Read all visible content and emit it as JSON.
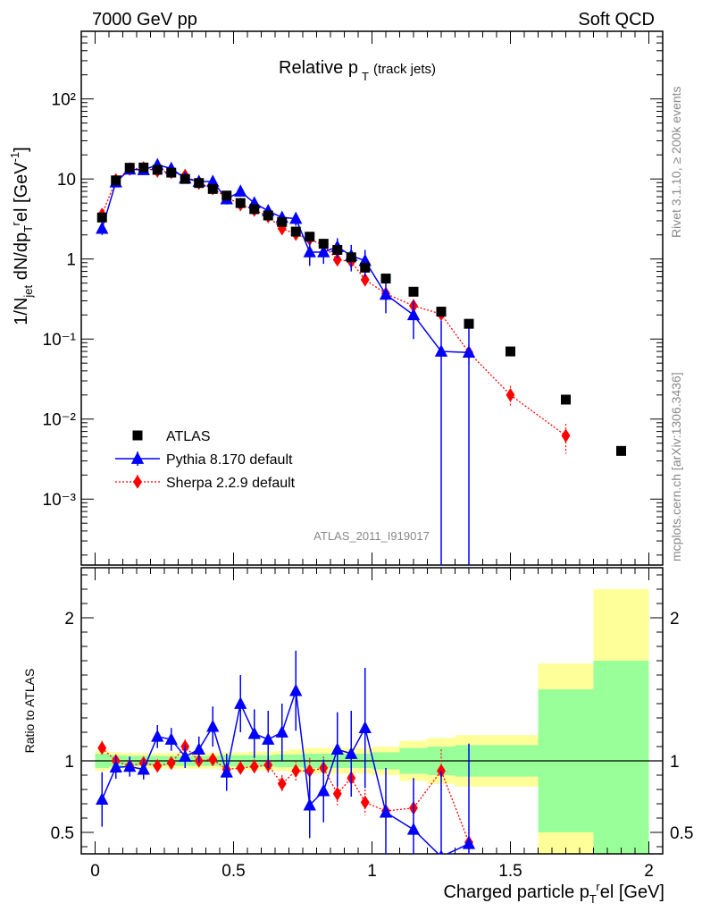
{
  "header": {
    "left": "7000 GeV pp",
    "right": "Soft QCD"
  },
  "side_labels": {
    "rivet": "Rivet 3.1.10, ≥ 200k events",
    "mcplots": "mcplots.cern.ch [arXiv:1306.3436]"
  },
  "colors": {
    "atlas": "#000000",
    "pythia": "#0000ff",
    "sherpa": "#ff0000",
    "band_inner": "#99ff99",
    "band_outer": "#ffff99"
  },
  "chart_data": [
    {
      "type": "scatter",
      "title": "Relative p_T (track jets)",
      "title_main": "Relative p",
      "title_sub": "T",
      "title_suffix": "(track jets)",
      "ylabel": "1/N_jet dN/dp_T^rel [GeV^-1]",
      "yscale": "log",
      "xlim": [
        -0.05,
        2.05
      ],
      "ylim": [
        0.00015,
        700
      ],
      "y_tick_labels": [
        "10⁻³",
        "10⁻²",
        "10⁻¹",
        "1",
        "10",
        "10²"
      ],
      "x": [
        0.025,
        0.075,
        0.125,
        0.175,
        0.225,
        0.275,
        0.325,
        0.375,
        0.425,
        0.475,
        0.525,
        0.575,
        0.625,
        0.675,
        0.725,
        0.775,
        0.825,
        0.875,
        0.925,
        0.975,
        1.05,
        1.15,
        1.25,
        1.35,
        1.5,
        1.7,
        1.9
      ],
      "series": [
        {
          "name": "ATLAS",
          "marker": "square",
          "values": [
            3.3,
            9.6,
            13.8,
            13.9,
            13.0,
            12.0,
            10.0,
            8.9,
            7.5,
            6.2,
            5.0,
            4.2,
            3.5,
            2.9,
            2.2,
            1.9,
            1.55,
            1.3,
            1.05,
            0.78,
            0.57,
            0.39,
            0.22,
            0.155,
            0.07,
            0.0175,
            0.004
          ]
        },
        {
          "name": "Pythia 8.170 default",
          "marker": "triangle",
          "line": "solid",
          "values": [
            2.4,
            9.1,
            13.2,
            13.0,
            15.0,
            13.5,
            10.2,
            9.3,
            9.3,
            5.6,
            7.0,
            5.0,
            4.0,
            3.3,
            3.2,
            1.22,
            1.22,
            1.42,
            1.1,
            0.95,
            0.36,
            0.2,
            0.07,
            0.068
          ],
          "err_up": [
            0.4,
            0.8,
            1.0,
            1.0,
            1.1,
            1.0,
            0.9,
            0.8,
            0.9,
            0.8,
            0.8,
            0.7,
            0.6,
            0.6,
            0.6,
            0.4,
            0.35,
            0.4,
            0.4,
            0.35,
            0.15,
            0.1,
            0.1,
            0.1
          ],
          "err_down": [
            0.4,
            0.8,
            1.0,
            1.0,
            1.1,
            1.0,
            0.9,
            0.8,
            0.9,
            0.8,
            0.8,
            0.7,
            0.6,
            0.6,
            0.6,
            0.4,
            0.35,
            0.4,
            0.4,
            0.35,
            0.15,
            0.1,
            0.0699,
            0.0679
          ]
        },
        {
          "name": "Sherpa 2.2.9 default",
          "marker": "diamond",
          "line": "dotted",
          "values": [
            3.6,
            9.7,
            13.3,
            13.7,
            12.6,
            12.1,
            11.0,
            8.9,
            7.6,
            5.9,
            4.8,
            4.1,
            3.4,
            2.4,
            2.05,
            1.77,
            1.48,
            0.98,
            0.93,
            0.55,
            0.37,
            0.26,
            0.205,
            0.068,
            0.02,
            0.0062
          ],
          "err_up": [
            0.3,
            0.5,
            0.6,
            0.6,
            0.6,
            0.6,
            0.5,
            0.5,
            0.4,
            0.4,
            0.3,
            0.3,
            0.3,
            0.25,
            0.2,
            0.2,
            0.15,
            0.12,
            0.12,
            0.08,
            0.05,
            0.04,
            0.04,
            0.02,
            0.006,
            0.0025
          ],
          "err_down": [
            0.3,
            0.5,
            0.6,
            0.6,
            0.6,
            0.6,
            0.5,
            0.5,
            0.4,
            0.4,
            0.3,
            0.3,
            0.3,
            0.25,
            0.2,
            0.2,
            0.15,
            0.12,
            0.12,
            0.08,
            0.05,
            0.04,
            0.04,
            0.02,
            0.006,
            0.0025
          ]
        }
      ],
      "annotation": "ATLAS_2011_I919017",
      "legend": {
        "placement": "lower-left",
        "entries": [
          "ATLAS",
          "Pythia 8.170 default",
          "Sherpa 2.2.9 default"
        ]
      }
    },
    {
      "type": "scatter",
      "ylabel": "Ratio to ATLAS",
      "xlabel": "Charged particle p_T^rel [GeV]",
      "xlabel_main": "Charged particle p",
      "xlabel_sub": "T",
      "xlabel_sup": "r",
      "xlabel_suffix": "el [GeV]",
      "xlim": [
        -0.05,
        2.05
      ],
      "ylim": [
        0.35,
        2.35
      ],
      "x_ticks": [
        "0",
        "0.5",
        "1",
        "1.5",
        "2"
      ],
      "y_ticks": [
        "0.5",
        "1",
        "2"
      ],
      "bands": {
        "edges": [
          0.0,
          0.05,
          0.1,
          0.15,
          0.2,
          0.25,
          0.3,
          0.35,
          0.4,
          0.45,
          0.5,
          0.55,
          0.6,
          0.65,
          0.7,
          0.75,
          0.8,
          0.85,
          0.9,
          0.95,
          1.0,
          1.1,
          1.2,
          1.3,
          1.4,
          1.6,
          1.8,
          2.0
        ],
        "inner": [
          0.05,
          0.04,
          0.035,
          0.035,
          0.035,
          0.035,
          0.035,
          0.035,
          0.035,
          0.04,
          0.04,
          0.04,
          0.04,
          0.045,
          0.045,
          0.05,
          0.05,
          0.05,
          0.05,
          0.05,
          0.06,
          0.09,
          0.1,
          0.11,
          0.11,
          0.5,
          0.7
        ],
        "outer": [
          0.07,
          0.06,
          0.055,
          0.055,
          0.055,
          0.055,
          0.055,
          0.055,
          0.055,
          0.06,
          0.06,
          0.065,
          0.065,
          0.07,
          0.08,
          0.09,
          0.09,
          0.09,
          0.09,
          0.09,
          0.1,
          0.14,
          0.16,
          0.18,
          0.18,
          0.68,
          1.2
        ]
      },
      "series": [
        {
          "name": "Pythia 8.170 default",
          "values": [
            0.73,
            0.955,
            0.96,
            0.94,
            1.17,
            1.15,
            1.03,
            1.08,
            1.24,
            0.92,
            1.4,
            1.19,
            1.15,
            1.2,
            1.49,
            0.69,
            0.79,
            1.08,
            1.05,
            1.23,
            0.64,
            0.52,
            0.33,
            0.42
          ],
          "err_up": [
            0.19,
            0.08,
            0.07,
            0.07,
            0.08,
            0.08,
            0.08,
            0.09,
            0.14,
            0.13,
            0.2,
            0.17,
            0.2,
            0.2,
            0.28,
            0.23,
            0.22,
            0.26,
            0.3,
            0.42,
            0.31,
            0.36,
            0.6,
            0.7
          ],
          "err_down": [
            0.19,
            0.08,
            0.07,
            0.07,
            0.08,
            0.08,
            0.08,
            0.09,
            0.14,
            0.13,
            0.2,
            0.17,
            0.2,
            0.2,
            0.28,
            0.23,
            0.22,
            0.26,
            0.3,
            0.42,
            0.31,
            0.36,
            0.33,
            0.42
          ]
        },
        {
          "name": "Sherpa 2.2.9 default",
          "values": [
            1.09,
            1.0,
            0.965,
            0.985,
            0.965,
            0.985,
            1.1,
            1.0,
            1.01,
            0.94,
            0.95,
            0.96,
            0.97,
            0.84,
            0.93,
            0.93,
            0.95,
            0.77,
            0.88,
            0.71,
            0.65,
            0.67,
            0.93,
            0.43
          ],
          "err_up": [
            0.05,
            0.04,
            0.04,
            0.04,
            0.04,
            0.04,
            0.05,
            0.04,
            0.04,
            0.05,
            0.05,
            0.05,
            0.06,
            0.06,
            0.07,
            0.09,
            0.08,
            0.08,
            0.1,
            0.09,
            0.1,
            0.13,
            0.15,
            0.12
          ],
          "err_down": [
            0.05,
            0.04,
            0.04,
            0.04,
            0.04,
            0.04,
            0.05,
            0.04,
            0.04,
            0.05,
            0.05,
            0.05,
            0.06,
            0.06,
            0.07,
            0.09,
            0.08,
            0.08,
            0.1,
            0.09,
            0.1,
            0.13,
            0.15,
            0.12
          ]
        }
      ]
    }
  ]
}
